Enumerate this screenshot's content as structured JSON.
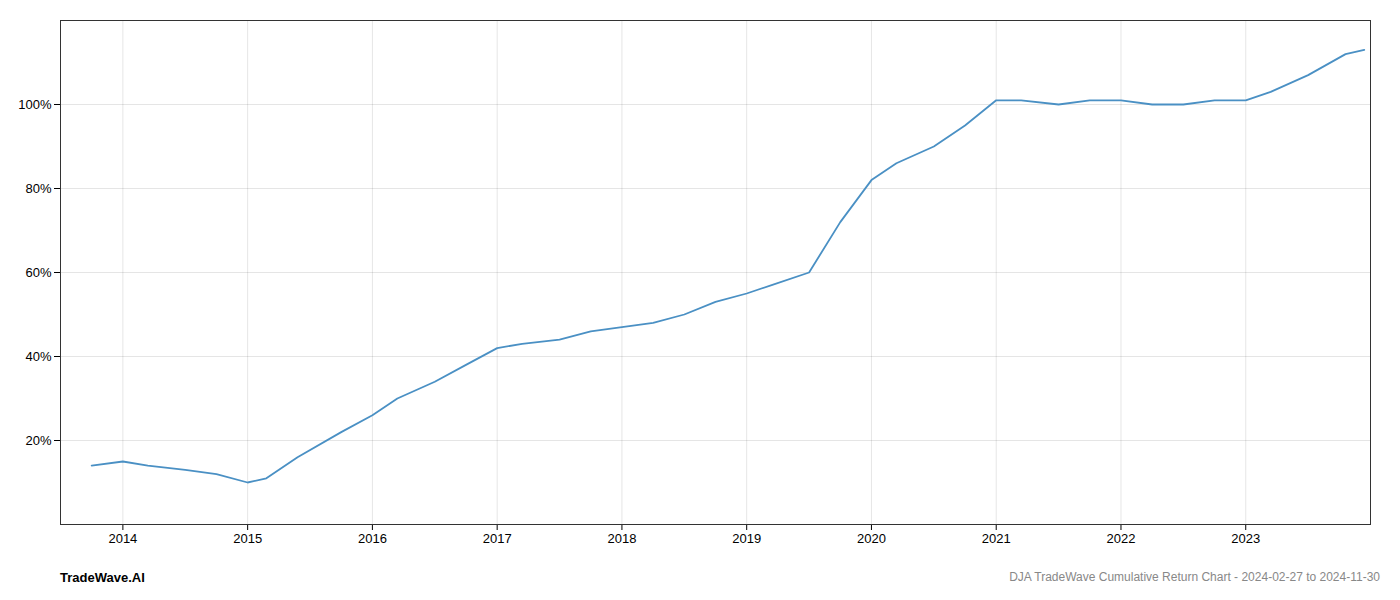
{
  "chart_data": {
    "type": "line",
    "x": [
      2013.75,
      2014.0,
      2014.2,
      2014.5,
      2014.75,
      2015.0,
      2015.15,
      2015.4,
      2015.75,
      2016.0,
      2016.2,
      2016.5,
      2016.75,
      2017.0,
      2017.2,
      2017.5,
      2017.75,
      2018.0,
      2018.25,
      2018.5,
      2018.75,
      2019.0,
      2019.2,
      2019.5,
      2019.75,
      2020.0,
      2020.2,
      2020.5,
      2020.75,
      2021.0,
      2021.2,
      2021.5,
      2021.75,
      2022.0,
      2022.25,
      2022.5,
      2022.75,
      2023.0,
      2023.2,
      2023.5,
      2023.8,
      2023.95
    ],
    "values": [
      14,
      15,
      14,
      13,
      12,
      10,
      11,
      16,
      22,
      26,
      30,
      34,
      38,
      42,
      43,
      44,
      46,
      47,
      48,
      50,
      53,
      55,
      57,
      60,
      72,
      82,
      86,
      90,
      95,
      101,
      101,
      100,
      101,
      101,
      100,
      100,
      101,
      101,
      103,
      107,
      112,
      113
    ],
    "color": "#4a90c4",
    "xlim": [
      2013.5,
      2024.0
    ],
    "ylim": [
      0,
      120
    ],
    "xticks": [
      2014,
      2015,
      2016,
      2017,
      2018,
      2019,
      2020,
      2021,
      2022,
      2023
    ],
    "yticks": [
      {
        "value": 20,
        "label": "20%"
      },
      {
        "value": 40,
        "label": "40%"
      },
      {
        "value": 60,
        "label": "60%"
      },
      {
        "value": 80,
        "label": "80%"
      },
      {
        "value": 100,
        "label": "100%"
      }
    ],
    "grid": true,
    "annotations": [
      "TradeWave.AI",
      "DJA TradeWave Cumulative Return Chart - 2024-02-27 to 2024-11-30"
    ]
  }
}
